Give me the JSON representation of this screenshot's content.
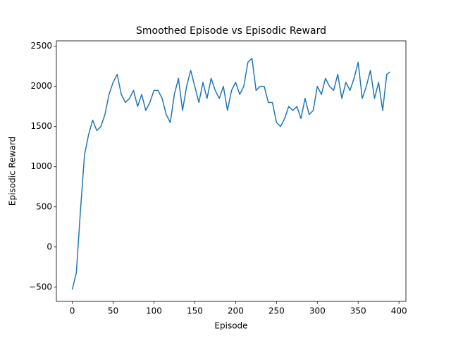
{
  "chart_data": {
    "type": "line",
    "title": "Smoothed Episode vs Episodic Reward",
    "x_label": "Episode",
    "y_label": "Episodic Reward",
    "color": "#1f77b4",
    "x": [
      0,
      5,
      10,
      15,
      20,
      25,
      30,
      35,
      40,
      45,
      50,
      55,
      60,
      65,
      70,
      75,
      80,
      85,
      90,
      95,
      100,
      105,
      110,
      115,
      120,
      125,
      130,
      135,
      140,
      145,
      150,
      155,
      160,
      165,
      170,
      175,
      180,
      185,
      190,
      195,
      200,
      205,
      210,
      215,
      220,
      225,
      230,
      235,
      240,
      245,
      250,
      255,
      260,
      265,
      270,
      275,
      280,
      285,
      290,
      295,
      300,
      305,
      310,
      315,
      320,
      325,
      330,
      335,
      340,
      345,
      350,
      355,
      360,
      365,
      370,
      375,
      380,
      385,
      389
    ],
    "values": [
      -530,
      -320,
      450,
      1150,
      1400,
      1580,
      1450,
      1500,
      1650,
      1900,
      2050,
      2150,
      1900,
      1800,
      1850,
      1950,
      1750,
      1900,
      1700,
      1800,
      1950,
      1950,
      1850,
      1650,
      1550,
      1900,
      2100,
      1700,
      2000,
      2200,
      2000,
      1800,
      2050,
      1850,
      2100,
      1950,
      1850,
      2000,
      1700,
      1950,
      2050,
      1900,
      2000,
      2300,
      2350,
      1950,
      2000,
      2000,
      1800,
      1800,
      1550,
      1500,
      1600,
      1750,
      1700,
      1750,
      1600,
      1850,
      1650,
      1700,
      2000,
      1900,
      2100,
      2000,
      1950,
      2150,
      1850,
      2050,
      1950,
      2100,
      2300,
      1850,
      2000,
      2200,
      1850,
      2050,
      1700,
      2150,
      2180
    ],
    "xlim": [
      -19.45,
      408.45
    ],
    "ylim": [
      -677,
      2567
    ],
    "xticks": [
      0,
      50,
      100,
      150,
      200,
      250,
      300,
      350,
      400
    ],
    "yticks": [
      {
        "value": -500,
        "label": "−500"
      },
      0,
      500,
      1000,
      1500,
      2000,
      2500
    ]
  }
}
